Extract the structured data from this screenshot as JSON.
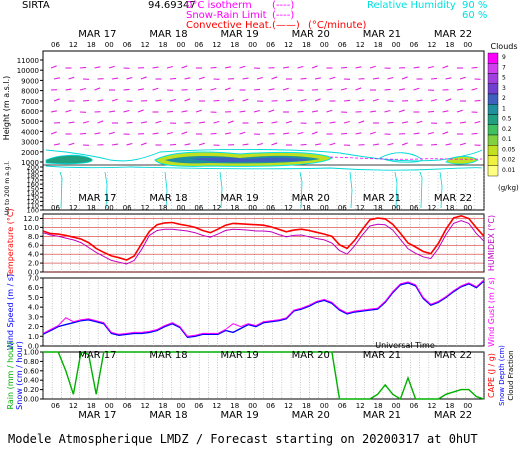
{
  "header": {
    "site": "SIRTA",
    "coord": "94.69347",
    "legend": [
      {
        "label": "0°C isotherm",
        "sample": "(----)",
        "color": "#ff00ff"
      },
      {
        "label": "Snow-Rain Limit",
        "sample": "(----)",
        "color": "#ff00ff"
      },
      {
        "label": "Convective Heat.",
        "sample": "(——)",
        "color": "#ff0000",
        "suffix": "(°C/minute)"
      }
    ],
    "rh": {
      "label": "Relative Humidity",
      "v1": "90 %",
      "v2": "60 %",
      "color": "#00e0e0"
    }
  },
  "days": [
    "MAR 17",
    "MAR 18",
    "MAR 19",
    "MAR 20",
    "MAR 21",
    "MAR 22"
  ],
  "hours": [
    "06",
    "12",
    "18",
    "00"
  ],
  "universal_time": "Universal Time",
  "footer": "Modele Atmospherique LMDZ / Forecast starting on 20200317 at 0hUT",
  "colors": {
    "temperature": "#ff0000",
    "humidex": "#c000c0",
    "wind": "#0000ff",
    "gust": "#ff00ff",
    "rain": "#00b000",
    "snow": "#0000ff",
    "cape": "#ff0000",
    "precip_line": "#000000"
  },
  "chart_data": [
    {
      "type": "heatmap",
      "title": "Clouds",
      "ylabel": "Height (m a.s.l.)",
      "ylabel2": "Up to 200 m a.g.l.",
      "yticks_upper": [
        1000,
        2000,
        3000,
        4000,
        5000,
        6000,
        7000,
        8000,
        9000,
        10000,
        11000
      ],
      "yticks_lower": [
        100,
        110,
        120,
        130,
        140,
        150,
        160,
        170,
        180,
        190,
        200
      ],
      "colorbar": {
        "unit": "(g/kg)",
        "labels": [
          "9",
          "7",
          "5",
          "3",
          "2",
          "1",
          "0.5",
          "0.2",
          "0.1",
          "0.05",
          "0.02",
          "0.01"
        ],
        "colors": [
          "#ff00ff",
          "#d040f0",
          "#a040e0",
          "#7040d0",
          "#4060c0",
          "#2090a0",
          "#20a080",
          "#40c060",
          "#80d040",
          "#c0e020",
          "#f0f040",
          "#ffff80"
        ]
      }
    },
    {
      "type": "line",
      "ylabel": "Temperature (°C)",
      "ylabel_right": "HUMIDEX (°C)",
      "yticks": [
        "12.0",
        "10.0",
        "8.0",
        "6.0",
        "4.0",
        "2.0",
        "0.0"
      ],
      "ylim": [
        0,
        13
      ],
      "series": [
        {
          "name": "Temperature",
          "values": [
            9.2,
            8.6,
            8.5,
            8.2,
            7.8,
            7.4,
            6.6,
            5.3,
            4.4,
            3.6,
            3.2,
            2.7,
            3.6,
            6.4,
            9.1,
            10.6,
            11.0,
            11.1,
            10.7,
            10.4,
            10.0,
            9.3,
            8.8,
            9.6,
            10.5,
            10.9,
            10.8,
            10.7,
            10.6,
            10.5,
            10.1,
            9.6,
            9.0,
            9.4,
            9.6,
            9.3,
            8.9,
            8.5,
            8.0,
            6.1,
            5.3,
            7.1,
            9.5,
            11.7,
            12.1,
            11.9,
            10.7,
            8.7,
            6.5,
            5.6,
            4.6,
            4.1,
            6.4,
            9.6,
            12.1,
            12.6,
            12.0,
            9.9,
            8.0
          ]
        },
        {
          "name": "Humidex",
          "values": [
            8.8,
            8.3,
            8.0,
            7.6,
            7.2,
            6.6,
            5.5,
            4.4,
            3.5,
            2.6,
            2.2,
            1.8,
            2.6,
            5.1,
            8.2,
            9.3,
            9.6,
            9.6,
            9.4,
            9.2,
            8.8,
            8.2,
            7.8,
            8.5,
            9.3,
            9.6,
            9.5,
            9.4,
            9.2,
            9.2,
            9.0,
            8.4,
            7.9,
            8.2,
            8.3,
            7.9,
            7.5,
            7.2,
            6.5,
            4.8,
            4.0,
            5.9,
            8.3,
            10.3,
            10.7,
            10.6,
            9.4,
            7.3,
            5.2,
            4.2,
            3.4,
            3.0,
            5.3,
            8.4,
            10.9,
            11.5,
            10.9,
            8.6,
            6.9
          ]
        }
      ]
    },
    {
      "type": "line",
      "ylabel": "Wind Speed (m / s)",
      "ylabel_right": "Wind Gust (m / s)",
      "yticks": [
        "7.0",
        "6.0",
        "5.0",
        "4.0",
        "3.0",
        "2.0",
        "1.0",
        "0.0"
      ],
      "ylim": [
        0,
        7
      ],
      "series": [
        {
          "name": "Wind Speed",
          "values": [
            1.2,
            1.6,
            2.0,
            2.2,
            2.4,
            2.6,
            2.7,
            2.5,
            2.3,
            1.3,
            1.1,
            1.2,
            1.3,
            1.3,
            1.4,
            1.6,
            2.0,
            2.3,
            1.9,
            0.9,
            1.0,
            1.2,
            1.2,
            1.2,
            1.6,
            1.4,
            1.8,
            2.2,
            2.0,
            2.4,
            2.5,
            2.6,
            2.8,
            3.6,
            3.8,
            4.1,
            4.5,
            4.7,
            4.4,
            3.7,
            3.3,
            3.5,
            3.6,
            3.7,
            3.8,
            4.5,
            5.5,
            6.3,
            6.5,
            6.2,
            4.9,
            4.2,
            4.5,
            5.0,
            5.6,
            6.1,
            6.4,
            6.0,
            6.7
          ]
        },
        {
          "name": "Wind Gust",
          "values": [
            1.3,
            1.7,
            2.1,
            2.9,
            2.5,
            2.7,
            2.8,
            2.6,
            2.4,
            1.4,
            1.2,
            1.3,
            1.4,
            1.4,
            1.5,
            1.7,
            2.1,
            2.4,
            2.0,
            1.0,
            1.1,
            1.3,
            1.3,
            1.3,
            1.7,
            2.3,
            2.0,
            2.3,
            2.1,
            2.5,
            2.6,
            2.7,
            2.9,
            3.7,
            3.9,
            4.2,
            4.6,
            4.8,
            4.5,
            3.8,
            3.4,
            3.6,
            3.7,
            3.8,
            3.9,
            4.6,
            5.6,
            6.4,
            6.6,
            6.3,
            5.0,
            4.3,
            4.6,
            5.1,
            5.7,
            6.2,
            6.5,
            6.1,
            6.8
          ]
        }
      ]
    },
    {
      "type": "line",
      "ylabel": "Rain (mm / hour)",
      "ylabel2": "Snow (cm / hour)",
      "ylabel_right": "CAPE (J / g)",
      "ylabel_right2": "Snow Depth (cm)",
      "ylabel_right3": "Cloud Fraction",
      "yticks": [
        "1.00",
        "0.80",
        "0.60",
        "0.40",
        "0.20",
        "0.00"
      ],
      "ylim": [
        0,
        1
      ],
      "series": [
        {
          "name": "Cloud Fraction",
          "values": [
            1.0,
            1.0,
            1.0,
            0.6,
            0.1,
            1.0,
            0.95,
            0.1,
            1.0,
            1.0,
            1.0,
            1.0,
            1.0,
            1.0,
            1.0,
            1.0,
            1.0,
            1.0,
            1.0,
            1.0,
            1.0,
            1.0,
            1.0,
            1.0,
            1.0,
            1.0,
            1.0,
            1.0,
            1.0,
            1.0,
            1.0,
            1.0,
            1.0,
            1.0,
            1.0,
            1.0,
            1.0,
            1.0,
            1.0,
            0.0,
            0.0,
            0.0,
            0.0,
            0.0,
            0.1,
            0.3,
            0.1,
            0.0,
            0.45,
            0.0,
            0.0,
            0.0,
            0.0,
            0.1,
            0.15,
            0.2,
            0.2,
            0.05,
            0.0
          ]
        }
      ]
    }
  ]
}
